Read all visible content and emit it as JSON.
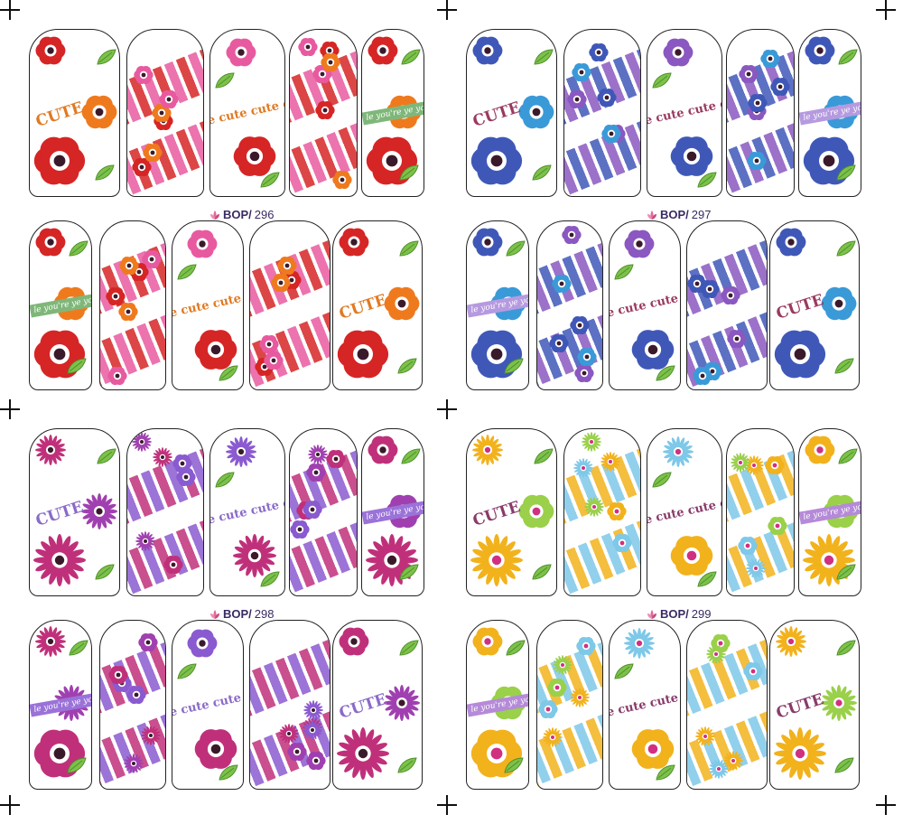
{
  "sheets": [
    {
      "code_prefix": "BOP/",
      "code_number": "296",
      "palette": [
        "#d62525",
        "#e85aa0",
        "#ef7a1e"
      ],
      "text_color": "#e07a22",
      "ribbon_color": "#7fb77a"
    },
    {
      "code_prefix": "BOP/",
      "code_number": "297",
      "palette": [
        "#3f58b8",
        "#8a58c0",
        "#3a9ad8"
      ],
      "text_color": "#9a3a60",
      "ribbon_color": "#b69ae0"
    },
    {
      "code_prefix": "BOP/",
      "code_number": "298",
      "palette": [
        "#c0307a",
        "#8a5ad0",
        "#a040b0"
      ],
      "text_color": "#8a6ac8",
      "ribbon_color": "#9a72d8"
    },
    {
      "code_prefix": "BOP/",
      "code_number": "299",
      "palette": [
        "#f2b21c",
        "#7ec8e8",
        "#9ad04a"
      ],
      "text_color": "#8a3a6a",
      "ribbon_color": "#b58ad8"
    }
  ],
  "labels": {
    "cute_big": "CUTE",
    "cute_line": "e cute  cute c",
    "ribbon_text": "le you're ye you're"
  },
  "icons": {
    "logo": "lotus-logo-icon",
    "crop": "crop-mark-icon",
    "leaf": "leaf-icon",
    "flower": "flower-icon"
  }
}
